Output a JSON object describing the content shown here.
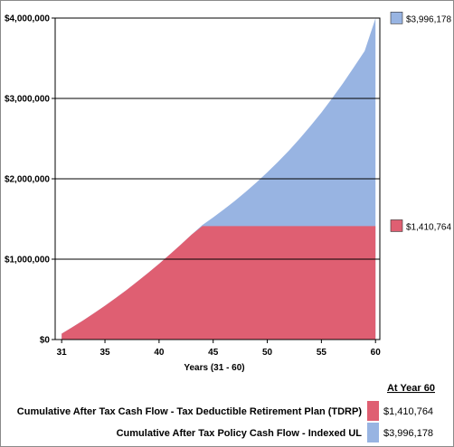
{
  "chart_data": {
    "type": "area",
    "title": "",
    "xlabel": "Years (31 - 60)",
    "ylabel": "",
    "x": [
      31,
      32,
      33,
      34,
      35,
      36,
      37,
      38,
      39,
      40,
      41,
      42,
      43,
      44,
      45,
      46,
      47,
      48,
      49,
      50,
      51,
      52,
      53,
      54,
      55,
      56,
      57,
      58,
      59,
      60
    ],
    "x_ticks": [
      {
        "value": 31,
        "label": "31"
      },
      {
        "value": 35,
        "label": "35"
      },
      {
        "value": 40,
        "label": "40"
      },
      {
        "value": 45,
        "label": "45"
      },
      {
        "value": 50,
        "label": "50"
      },
      {
        "value": 55,
        "label": "55"
      },
      {
        "value": 60,
        "label": "60"
      }
    ],
    "y_ticks": [
      {
        "value": 0,
        "label": "$0"
      },
      {
        "value": 1000000,
        "label": "$1,000,000"
      },
      {
        "value": 2000000,
        "label": "$2,000,000"
      },
      {
        "value": 3000000,
        "label": "$3,000,000"
      },
      {
        "value": 4000000,
        "label": "$4,000,000"
      }
    ],
    "xlim": [
      30.4,
      60.4
    ],
    "ylim": [
      0,
      4000000
    ],
    "grid": "horizontal",
    "series": [
      {
        "name": "Cumulative After Tax Policy Cash Flow - Indexed UL",
        "color": "#98b4e2",
        "end_label": "$3,996,178",
        "values": [
          73000,
          154000,
          239000,
          328000,
          420000,
          517000,
          617000,
          722000,
          830000,
          943000,
          1059000,
          1180000,
          1304000,
          1425000,
          1520000,
          1620000,
          1725000,
          1837000,
          1955000,
          2080000,
          2212000,
          2352000,
          2500000,
          2658000,
          2825000,
          3002000,
          3190000,
          3389000,
          3590000,
          3996178
        ]
      },
      {
        "name": "Cumulative After Tax Cash Flow - Tax Deductible Retirement Plan (TDRP)",
        "color": "#df5f72",
        "end_label": "$1,410,764",
        "values": [
          73000,
          154000,
          239000,
          328000,
          420000,
          517000,
          617000,
          722000,
          830000,
          943000,
          1059000,
          1180000,
          1304000,
          1410764,
          1410764,
          1410764,
          1410764,
          1410764,
          1410764,
          1410764,
          1410764,
          1410764,
          1410764,
          1410764,
          1410764,
          1410764,
          1410764,
          1410764,
          1410764,
          1410764
        ]
      }
    ]
  },
  "legend": {
    "header": "At Year 60",
    "items": [
      {
        "label": "Cumulative After Tax Cash Flow - Tax Deductible Retirement Plan (TDRP)",
        "value": "$1,410,764",
        "color": "#df5f72"
      },
      {
        "label": "Cumulative After Tax Policy Cash Flow - Indexed UL",
        "value": "$3,996,178",
        "color": "#98b4e2"
      }
    ]
  }
}
